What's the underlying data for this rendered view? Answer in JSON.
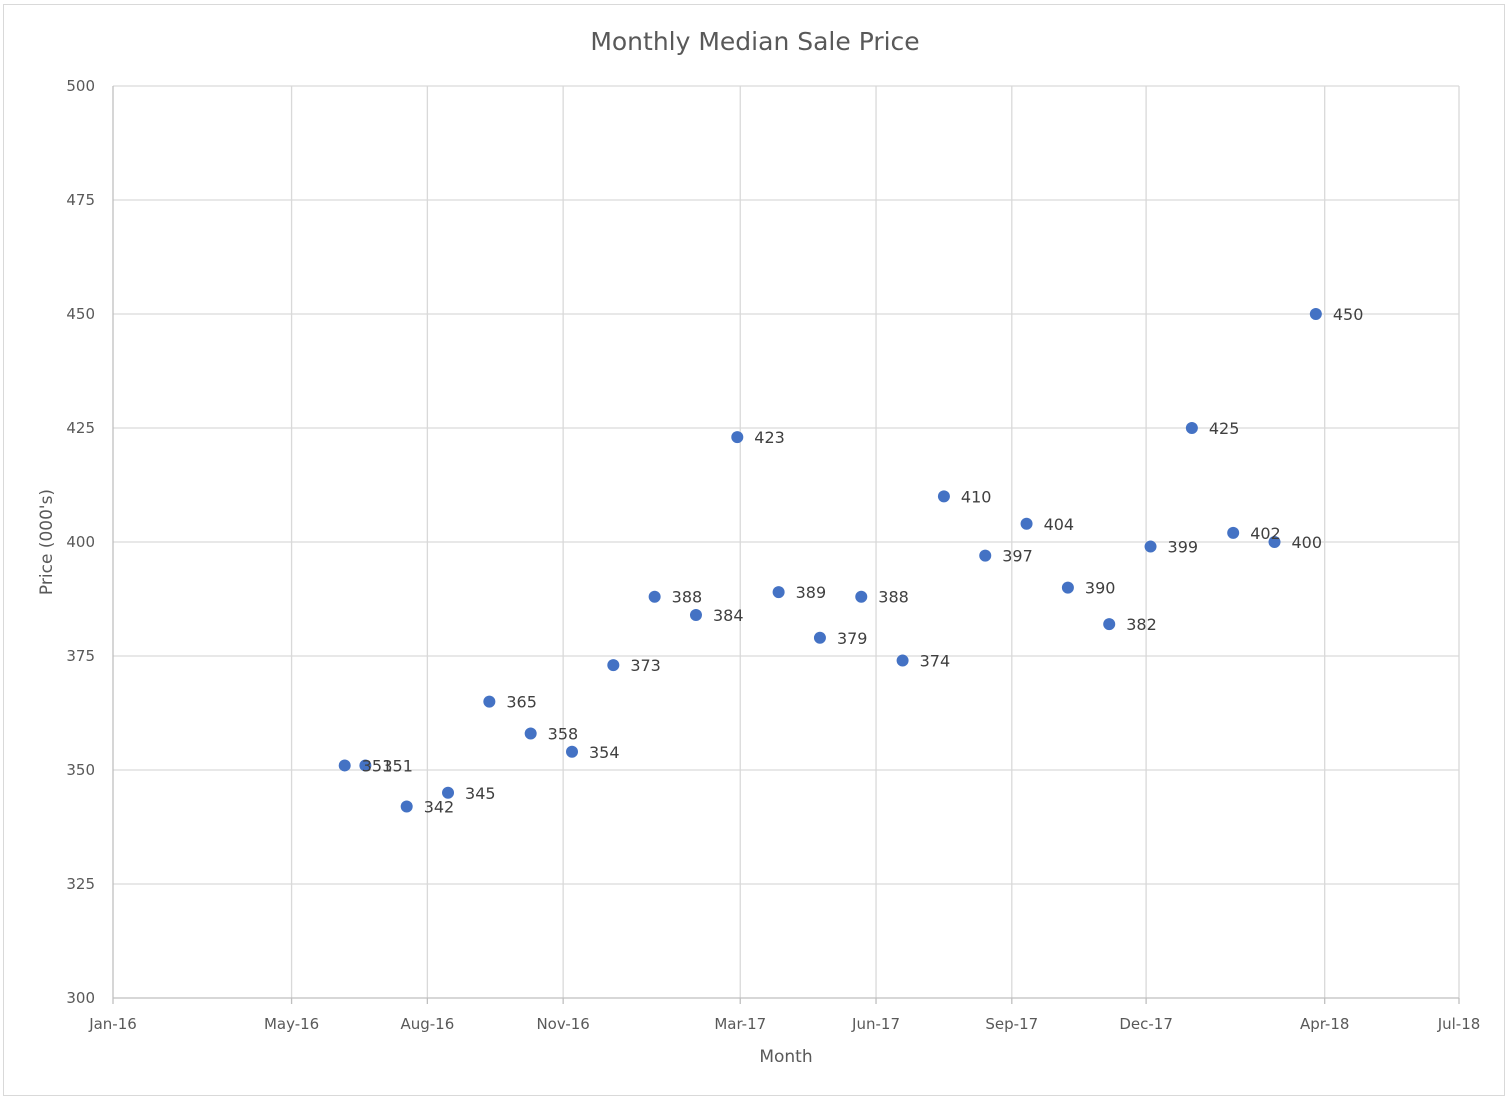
{
  "chart_data": {
    "type": "scatter",
    "title": "Monthly Median Sale Price",
    "xlabel": "Month",
    "ylabel": "Price (000's)",
    "xlim": [
      "2016-01-01",
      "2018-07-01"
    ],
    "ylim": [
      300,
      500
    ],
    "x_ticks": [
      "2016-01-01",
      "2016-05-01",
      "2016-08-01",
      "2016-11-01",
      "2017-03-01",
      "2017-06-01",
      "2017-09-01",
      "2017-12-01",
      "2018-04-01",
      "2018-07-01"
    ],
    "x_tick_labels": [
      "Jan-16",
      "May-16",
      "Aug-16",
      "Nov-16",
      "Mar-17",
      "Jun-17",
      "Sep-17",
      "Dec-17",
      "Apr-18",
      "Jul-18"
    ],
    "y_ticks": [
      300,
      325,
      350,
      375,
      400,
      425,
      450,
      475,
      500
    ],
    "y_tick_labels": [
      "300",
      "325",
      "350",
      "375",
      "400",
      "425",
      "450",
      "475",
      "500"
    ],
    "grid": true,
    "marker_color": "#4472c4",
    "points": [
      {
        "x": "2016-06-06",
        "y": 351,
        "label": "351"
      },
      {
        "x": "2016-06-20",
        "y": 351,
        "label": "351"
      },
      {
        "x": "2016-07-18",
        "y": 342,
        "label": "342"
      },
      {
        "x": "2016-08-15",
        "y": 345,
        "label": "345"
      },
      {
        "x": "2016-09-12",
        "y": 365,
        "label": "365"
      },
      {
        "x": "2016-10-10",
        "y": 358,
        "label": "358"
      },
      {
        "x": "2016-11-07",
        "y": 354,
        "label": "354"
      },
      {
        "x": "2016-12-05",
        "y": 373,
        "label": "373"
      },
      {
        "x": "2017-01-02",
        "y": 388,
        "label": "388"
      },
      {
        "x": "2017-01-30",
        "y": 384,
        "label": "384"
      },
      {
        "x": "2017-02-27",
        "y": 423,
        "label": "423"
      },
      {
        "x": "2017-03-27",
        "y": 389,
        "label": "389"
      },
      {
        "x": "2017-04-24",
        "y": 379,
        "label": "379"
      },
      {
        "x": "2017-05-22",
        "y": 388,
        "label": "388"
      },
      {
        "x": "2017-06-19",
        "y": 374,
        "label": "374"
      },
      {
        "x": "2017-07-17",
        "y": 410,
        "label": "410"
      },
      {
        "x": "2017-08-14",
        "y": 397,
        "label": "397"
      },
      {
        "x": "2017-09-11",
        "y": 404,
        "label": "404"
      },
      {
        "x": "2017-10-09",
        "y": 390,
        "label": "390"
      },
      {
        "x": "2017-11-06",
        "y": 382,
        "label": "382"
      },
      {
        "x": "2017-12-04",
        "y": 399,
        "label": "399"
      },
      {
        "x": "2018-01-01",
        "y": 425,
        "label": "425"
      },
      {
        "x": "2018-01-29",
        "y": 402,
        "label": "402"
      },
      {
        "x": "2018-02-26",
        "y": 400,
        "label": "400"
      },
      {
        "x": "2018-03-26",
        "y": 450,
        "label": "450"
      }
    ]
  }
}
